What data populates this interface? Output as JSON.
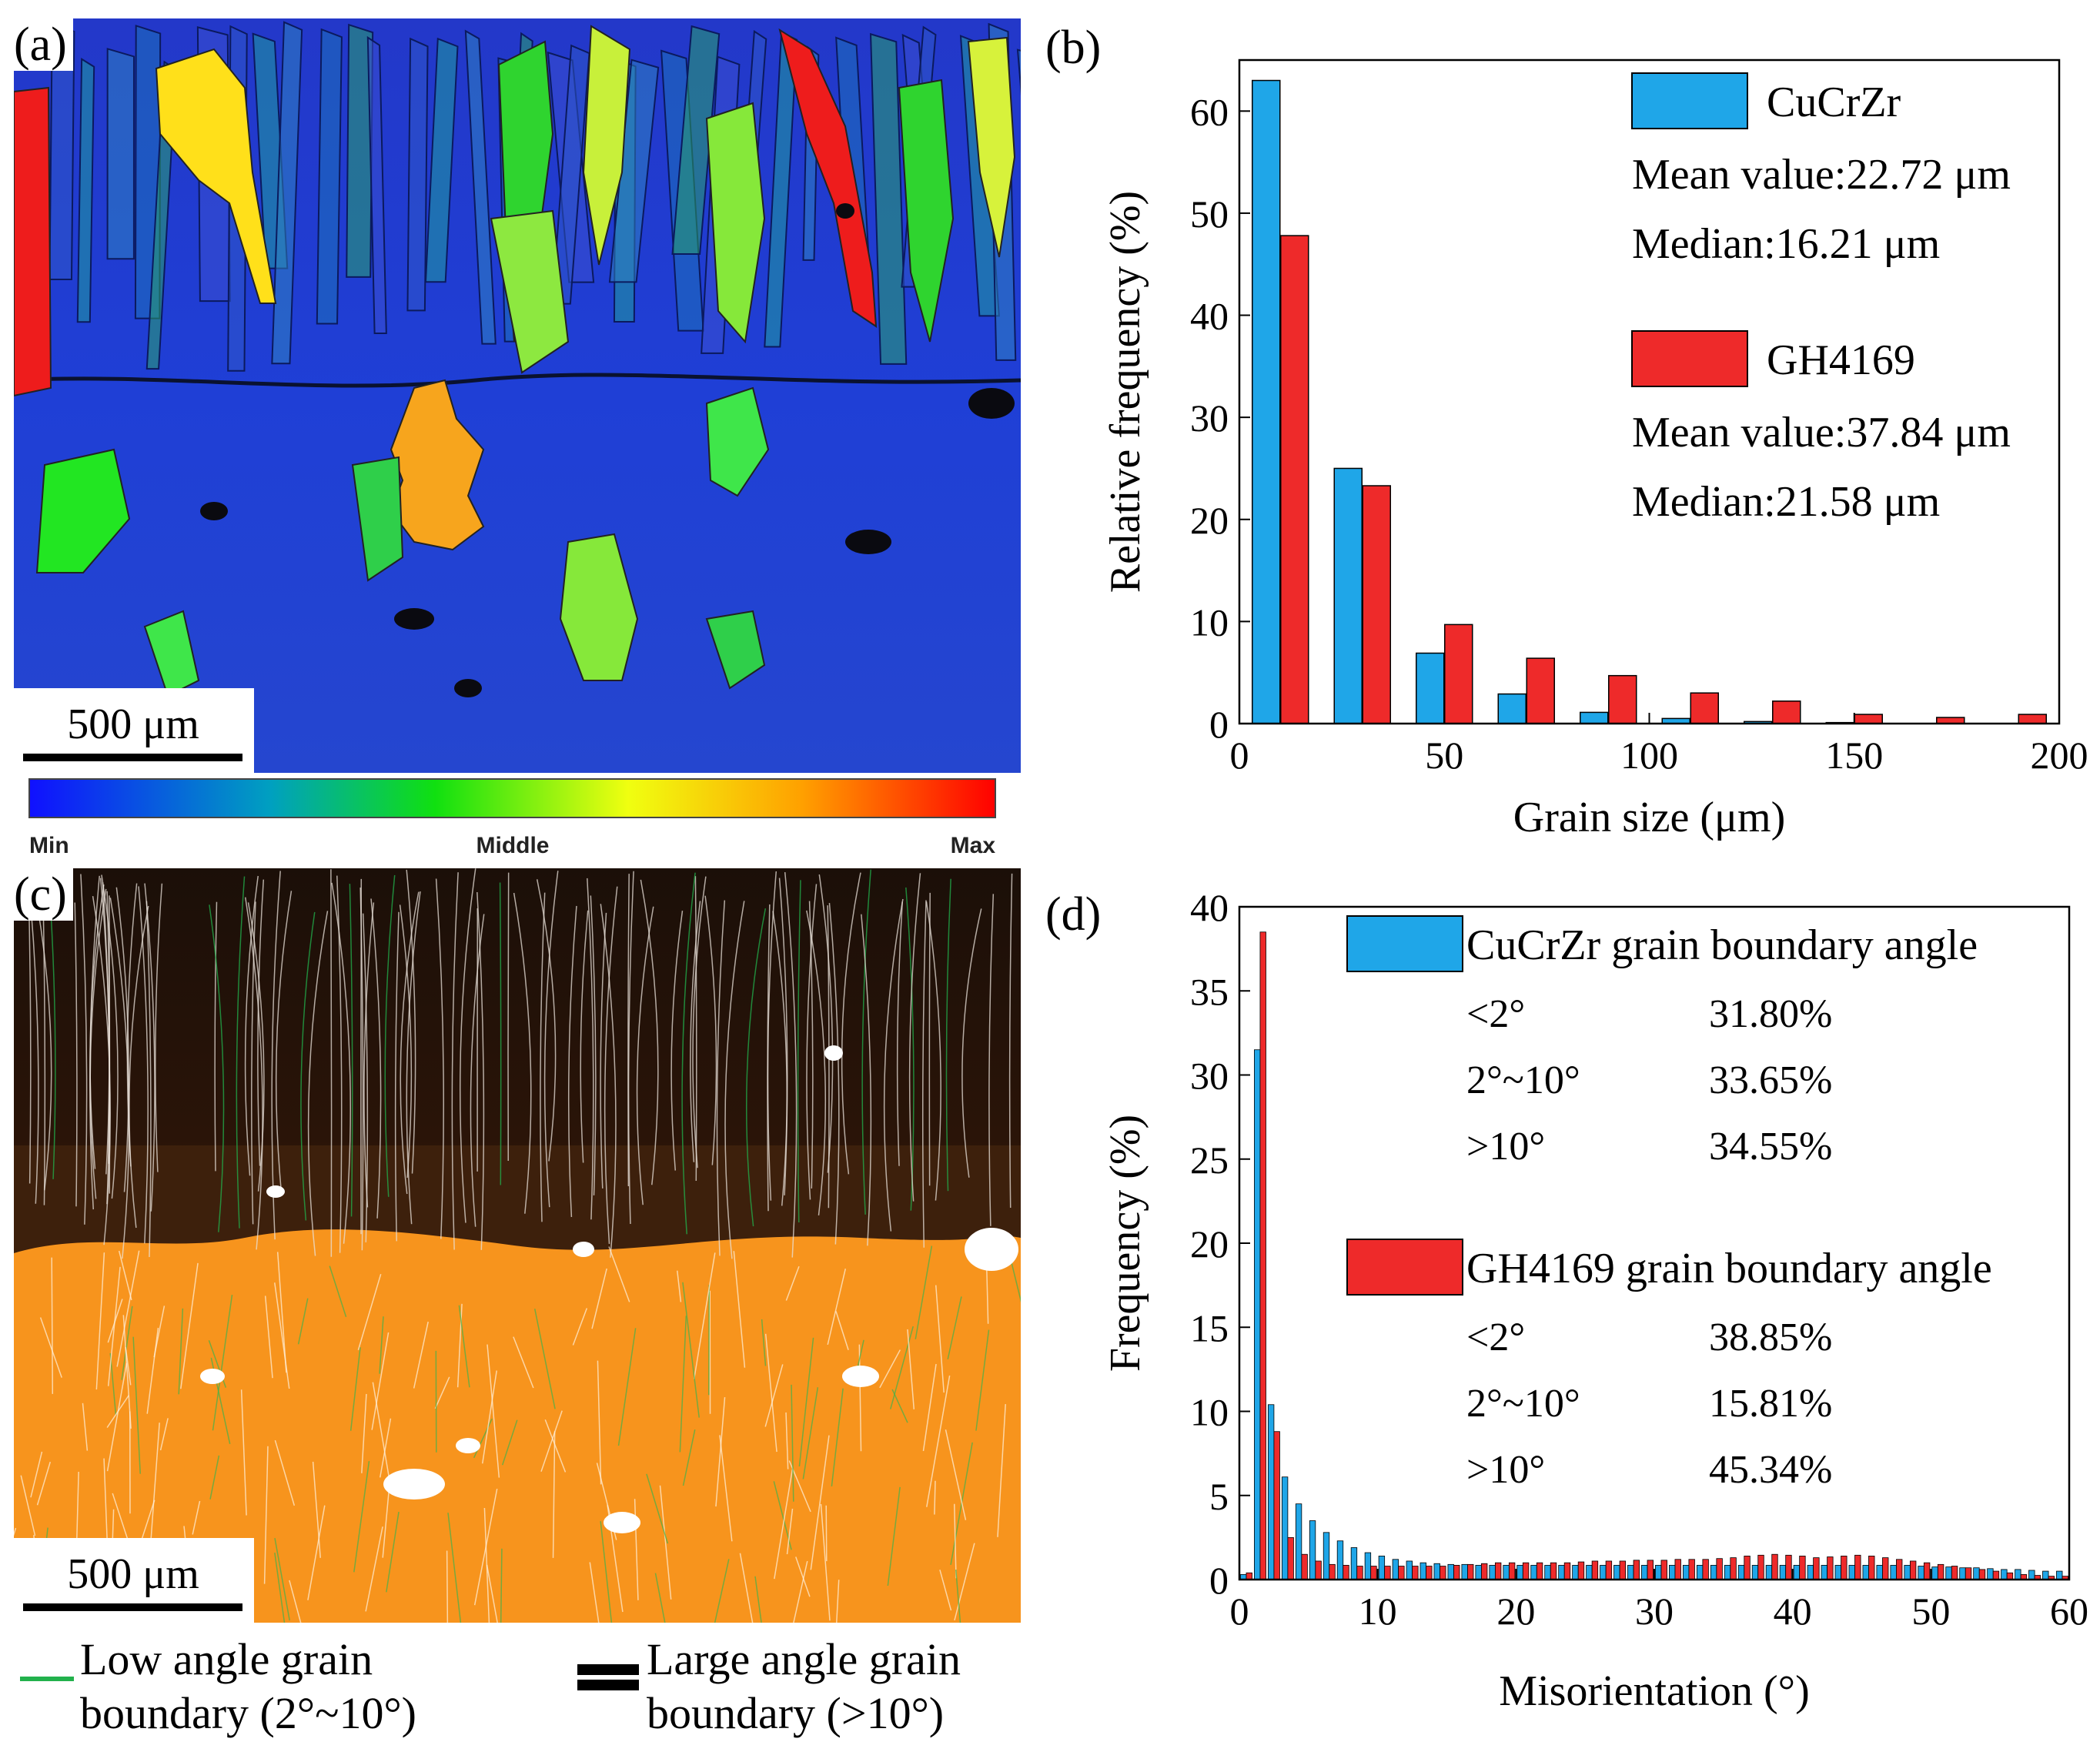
{
  "panels": {
    "a": {
      "label": "(a)",
      "scale_bar": "500 μm"
    },
    "b": {
      "label": "(b)"
    },
    "c": {
      "label": "(c)",
      "scale_bar": "500 μm"
    },
    "d": {
      "label": "(d)"
    }
  },
  "colorbar": {
    "min": "Min",
    "middle": "Middle",
    "max": "Max"
  },
  "boundary_legend": {
    "low_line1": "Low angle grain",
    "low_line2": "boundary (2°~10°)",
    "large_line1": "Large angle grain",
    "large_line2": "boundary (>10°)"
  },
  "colors": {
    "cucrzr": "#1fa6e8",
    "gh4169": "#ee2a2a",
    "map_blue": "#1f3fd6",
    "map_orange": "#f7941d",
    "map_dark": "#2a1408",
    "low_angle_green": "#22b14c"
  },
  "chart_data": [
    {
      "type": "bar",
      "panel": "(b)",
      "xlabel": "Grain size (μm)",
      "ylabel": "Relative frequency (%)",
      "xlim": [
        0,
        200
      ],
      "ylim": [
        0,
        65
      ],
      "xticks": [
        0,
        50,
        100,
        150,
        200
      ],
      "yticks": [
        0,
        10,
        20,
        30,
        40,
        50,
        60
      ],
      "x": [
        10,
        30,
        50,
        70,
        90,
        110,
        130,
        150,
        170,
        190
      ],
      "series": [
        {
          "name": "CuCrZr",
          "color": "#1fa6e8",
          "values": [
            63.0,
            25.0,
            6.9,
            2.9,
            1.1,
            0.5,
            0.2,
            0.1,
            0,
            0
          ],
          "stats": [
            "Mean value:22.72 μm",
            "Median:16.21 μm"
          ]
        },
        {
          "name": "GH4169",
          "color": "#ee2a2a",
          "values": [
            47.8,
            23.3,
            9.7,
            6.4,
            4.7,
            3.0,
            2.2,
            0.9,
            0.6,
            0.9
          ],
          "stats": [
            "Mean value:37.84 μm",
            "Median:21.58 μm"
          ]
        }
      ]
    },
    {
      "type": "bar",
      "panel": "(d)",
      "xlabel": "Misorientation (°)",
      "ylabel": "Frequency (%)",
      "xlim": [
        0,
        60
      ],
      "ylim": [
        0,
        40
      ],
      "xticks": [
        0,
        10,
        20,
        30,
        40,
        50,
        60
      ],
      "yticks": [
        0,
        5,
        10,
        15,
        20,
        25,
        30,
        35,
        40
      ],
      "bin_width": 1,
      "x": [
        1,
        2,
        3,
        4,
        5,
        6,
        7,
        8,
        9,
        10,
        11,
        12,
        13,
        14,
        15,
        16,
        17,
        18,
        19,
        20,
        21,
        22,
        23,
        24,
        25,
        26,
        27,
        28,
        29,
        30,
        31,
        32,
        33,
        34,
        35,
        36,
        37,
        38,
        39,
        40,
        41,
        42,
        43,
        44,
        45,
        46,
        47,
        48,
        49,
        50,
        51,
        52,
        53,
        54,
        55,
        56,
        57,
        58,
        59,
        60
      ],
      "series": [
        {
          "name": "CuCrZr grain boundary angle",
          "color": "#1fa6e8",
          "values": [
            0.3,
            31.5,
            10.4,
            6.1,
            4.5,
            3.5,
            2.8,
            2.3,
            1.9,
            1.6,
            1.4,
            1.2,
            1.1,
            1.0,
            0.95,
            0.9,
            0.9,
            0.85,
            0.85,
            0.85,
            0.85,
            0.85,
            0.85,
            0.85,
            0.85,
            0.85,
            0.85,
            0.85,
            0.85,
            0.85,
            0.85,
            0.85,
            0.85,
            0.85,
            0.85,
            0.85,
            0.85,
            0.85,
            0.85,
            0.85,
            0.85,
            0.85,
            0.85,
            0.85,
            0.85,
            0.85,
            0.85,
            0.85,
            0.85,
            0.8,
            0.75,
            0.75,
            0.7,
            0.7,
            0.65,
            0.6,
            0.6,
            0.55,
            0.5,
            0.5
          ],
          "angle_stats": [
            {
              "range": "<2°",
              "value": "31.80%"
            },
            {
              "range": "2°~10°",
              "value": "33.65%"
            },
            {
              "range": ">10°",
              "value": "34.55%"
            }
          ]
        },
        {
          "name": "GH4169 grain boundary angle",
          "color": "#ee2a2a",
          "values": [
            0.4,
            38.5,
            8.8,
            2.5,
            1.5,
            1.1,
            0.9,
            0.85,
            0.8,
            0.8,
            0.8,
            0.8,
            0.8,
            0.8,
            0.8,
            0.85,
            0.9,
            0.95,
            1.0,
            1.0,
            1.0,
            1.0,
            1.0,
            1.0,
            1.05,
            1.1,
            1.1,
            1.1,
            1.15,
            1.15,
            1.15,
            1.2,
            1.2,
            1.2,
            1.25,
            1.3,
            1.4,
            1.45,
            1.5,
            1.45,
            1.4,
            1.3,
            1.35,
            1.4,
            1.45,
            1.4,
            1.3,
            1.2,
            1.1,
            1.0,
            0.9,
            0.8,
            0.7,
            0.6,
            0.5,
            0.4,
            0.3,
            0.25,
            0.2,
            0.2
          ],
          "angle_stats": [
            {
              "range": "<2°",
              "value": "38.85%"
            },
            {
              "range": "2°~10°",
              "value": "15.81%"
            },
            {
              "range": ">10°",
              "value": "45.34%"
            }
          ]
        }
      ]
    }
  ]
}
